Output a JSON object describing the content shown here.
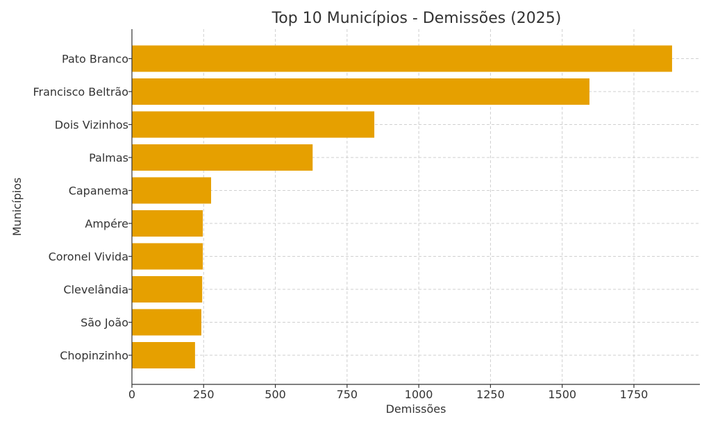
{
  "chart_data": {
    "type": "bar",
    "orientation": "horizontal",
    "title": "Top 10 Municípios - Demissões (2025)",
    "xlabel": "Demissões",
    "ylabel": "Municípios",
    "categories": [
      "Pato Branco",
      "Francisco Beltrão",
      "Dois Vizinhos",
      "Palmas",
      "Capanema",
      "Ampére",
      "Coronel Vivida",
      "Clevelândia",
      "São João",
      "Chopinzinho"
    ],
    "values": [
      1883,
      1595,
      845,
      630,
      276,
      247,
      247,
      245,
      242,
      220
    ],
    "xlim": [
      0,
      1980
    ],
    "xticks": [
      0,
      250,
      500,
      750,
      1000,
      1250,
      1500,
      1750
    ],
    "grid": true,
    "bar_color": "#E6A000"
  }
}
